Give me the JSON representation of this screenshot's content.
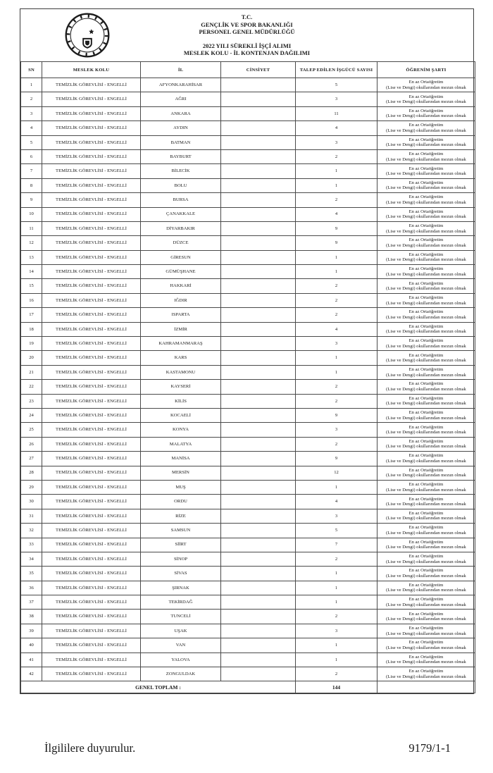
{
  "header": {
    "line1": "T.C.",
    "line2": "GENÇLİK VE SPOR BAKANLIĞI",
    "line3": "PERSONEL GENEL MÜDÜRLÜĞÜ",
    "line4": "2022 YILI SÜREKLİ İŞÇİ ALIMI",
    "line5": "MESLEK KOLU - İL KONTENJAN DAĞILIMI",
    "logo": "gsb-ministry-seal"
  },
  "table": {
    "columns": [
      "SN",
      "MESLEK KOLU",
      "İL",
      "CİNSİYET",
      "TALEP EDİLEN İŞGÜCÜ SAYISI",
      "ÖĞRENİM ŞARTI"
    ],
    "meslek_kolu_all": "TEMİZLİK GÖREVLİSİ - ENGELLİ",
    "cinsiyet_all": "",
    "ogrenim_sarti_all": [
      "En az Ortaöğretim",
      "(Lise ve Dengi) okullarından mezun olmak"
    ],
    "rows": [
      [
        "1",
        "AFYONKARAHİSAR",
        "5"
      ],
      [
        "2",
        "AĞRI",
        "3"
      ],
      [
        "3",
        "ANKARA",
        "11"
      ],
      [
        "4",
        "AYDIN",
        "4"
      ],
      [
        "5",
        "BATMAN",
        "3"
      ],
      [
        "6",
        "BAYBURT",
        "2"
      ],
      [
        "7",
        "BİLECİK",
        "1"
      ],
      [
        "8",
        "BOLU",
        "1"
      ],
      [
        "9",
        "BURSA",
        "2"
      ],
      [
        "10",
        "ÇANAKKALE",
        "4"
      ],
      [
        "11",
        "DİYARBAKIR",
        "9"
      ],
      [
        "12",
        "DÜZCE",
        "9"
      ],
      [
        "13",
        "GİRESUN",
        "1"
      ],
      [
        "14",
        "GÜMÜŞHANE",
        "1"
      ],
      [
        "15",
        "HAKKARİ",
        "2"
      ],
      [
        "16",
        "IĞDIR",
        "2"
      ],
      [
        "17",
        "ISPARTA",
        "2"
      ],
      [
        "18",
        "İZMİR",
        "4"
      ],
      [
        "19",
        "KAHRAMANMARAŞ",
        "3"
      ],
      [
        "20",
        "KARS",
        "1"
      ],
      [
        "21",
        "KASTAMONU",
        "1"
      ],
      [
        "22",
        "KAYSERİ",
        "2"
      ],
      [
        "23",
        "KİLİS",
        "2"
      ],
      [
        "24",
        "KOCAELİ",
        "9"
      ],
      [
        "25",
        "KONYA",
        "3"
      ],
      [
        "26",
        "MALATYA",
        "2"
      ],
      [
        "27",
        "MANİSA",
        "9"
      ],
      [
        "28",
        "MERSİN",
        "12"
      ],
      [
        "29",
        "MUŞ",
        "1"
      ],
      [
        "30",
        "ORDU",
        "4"
      ],
      [
        "31",
        "RİZE",
        "3"
      ],
      [
        "32",
        "SAMSUN",
        "5"
      ],
      [
        "33",
        "SİİRT",
        "7"
      ],
      [
        "34",
        "SİNOP",
        "2"
      ],
      [
        "35",
        "SİVAS",
        "1"
      ],
      [
        "36",
        "ŞIRNAK",
        "1"
      ],
      [
        "37",
        "TEKİRDAĞ",
        "1"
      ],
      [
        "38",
        "TUNCELİ",
        "2"
      ],
      [
        "39",
        "UŞAK",
        "3"
      ],
      [
        "40",
        "VAN",
        "1"
      ],
      [
        "41",
        "YALOVA",
        "1"
      ],
      [
        "42",
        "ZONGULDAK",
        "2"
      ]
    ],
    "total_label": "GENEL TOPLAM :",
    "total_value": "144"
  },
  "footer": {
    "left": "İlgililere duyurulur.",
    "right": "9179/1-1"
  },
  "colors": {
    "ink": "#1a1a1a",
    "border": "#4a4a4a",
    "paper": "#ffffff"
  }
}
